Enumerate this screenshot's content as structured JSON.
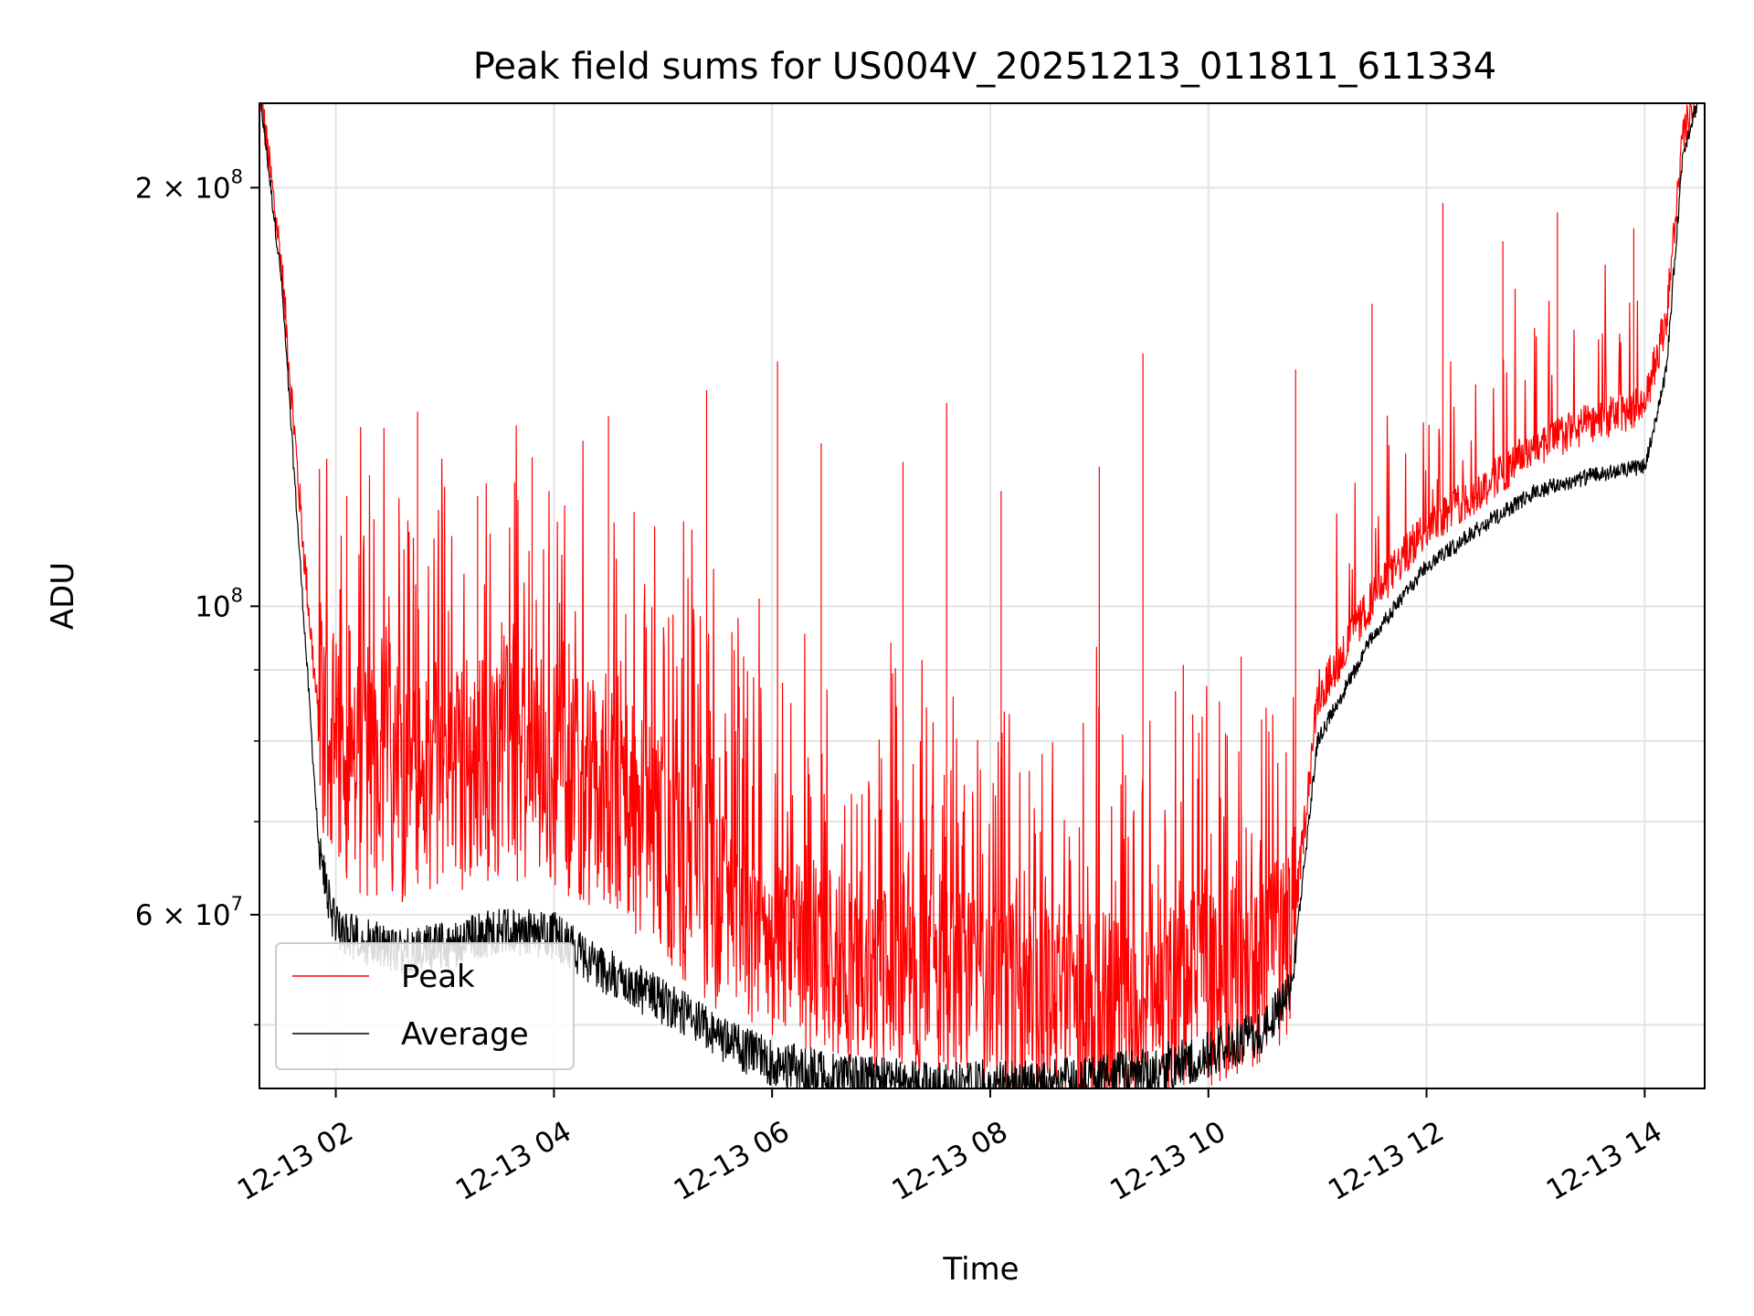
{
  "chart_data": {
    "type": "line",
    "title": "Peak field sums for US004V_20251213_011811_611334",
    "xlabel": "Time",
    "ylabel": "ADU",
    "yscale": "log",
    "xlim_hours": [
      1.3,
      14.55
    ],
    "ylim": [
      45000000,
      230000000
    ],
    "grid": true,
    "legend_position": "lower-left",
    "x_ticks": [
      {
        "value": 2,
        "label": "12-13 02"
      },
      {
        "value": 4,
        "label": "12-13 04"
      },
      {
        "value": 6,
        "label": "12-13 06"
      },
      {
        "value": 8,
        "label": "12-13 08"
      },
      {
        "value": 10,
        "label": "12-13 10"
      },
      {
        "value": 12,
        "label": "12-13 12"
      },
      {
        "value": 14,
        "label": "12-13 14"
      }
    ],
    "y_ticks": [
      {
        "value": 200000000,
        "mantissa": "2 × 10",
        "exponent": "8"
      },
      {
        "value": 100000000,
        "mantissa": "10",
        "exponent": "8"
      },
      {
        "value": 60000000,
        "mantissa": "6 × 10",
        "exponent": "7"
      }
    ],
    "y_minor_ticks": [
      50000000,
      70000000,
      80000000,
      90000000
    ],
    "series": [
      {
        "name": "Peak",
        "color": "#ff0000",
        "baseline_hours": [
          1.3,
          1.5,
          1.7,
          1.85,
          2.0,
          2.5,
          3.0,
          3.5,
          4.0,
          4.5,
          5.0,
          5.5,
          6.0,
          6.5,
          7.0,
          7.5,
          8.0,
          8.5,
          9.0,
          9.5,
          10.0,
          10.5,
          10.75,
          11.0,
          11.5,
          12.0,
          12.5,
          13.0,
          13.5,
          14.0,
          14.2,
          14.35,
          14.55
        ],
        "baseline_values": [
          235000000,
          175000000,
          110000000,
          80000000,
          72000000,
          70000000,
          71000000,
          73000000,
          72000000,
          68000000,
          64000000,
          58000000,
          55000000,
          53000000,
          52000000,
          51000000,
          50000000,
          49500000,
          49000000,
          49500000,
          50500000,
          52500000,
          55000000,
          85000000,
          100000000,
          113000000,
          120000000,
          129000000,
          134000000,
          138000000,
          160000000,
          215000000,
          240000000
        ],
        "spikes": [
          {
            "x": 2.1,
            "y": 120000000
          },
          {
            "x": 2.75,
            "y": 138000000
          },
          {
            "x": 3.3,
            "y": 120000000
          },
          {
            "x": 3.8,
            "y": 128000000
          },
          {
            "x": 4.5,
            "y": 137000000
          },
          {
            "x": 5.4,
            "y": 143000000
          },
          {
            "x": 6.05,
            "y": 150000000
          },
          {
            "x": 6.45,
            "y": 131000000
          },
          {
            "x": 7.2,
            "y": 127000000
          },
          {
            "x": 7.6,
            "y": 140000000
          },
          {
            "x": 8.1,
            "y": 121000000
          },
          {
            "x": 9.0,
            "y": 126000000
          },
          {
            "x": 9.4,
            "y": 152000000
          },
          {
            "x": 10.3,
            "y": 92000000
          },
          {
            "x": 10.8,
            "y": 148000000
          },
          {
            "x": 11.5,
            "y": 165000000
          },
          {
            "x": 12.15,
            "y": 195000000
          },
          {
            "x": 12.7,
            "y": 183000000
          },
          {
            "x": 13.2,
            "y": 192000000
          },
          {
            "x": 13.9,
            "y": 187000000
          }
        ]
      },
      {
        "name": "Average",
        "color": "#000000",
        "baseline_hours": [
          1.3,
          1.5,
          1.7,
          1.85,
          2.0,
          2.5,
          3.0,
          3.5,
          4.0,
          4.5,
          5.0,
          5.5,
          6.0,
          6.5,
          7.0,
          7.5,
          8.0,
          8.5,
          9.0,
          9.5,
          10.0,
          10.5,
          10.75,
          11.0,
          11.5,
          12.0,
          12.5,
          13.0,
          13.5,
          14.0,
          14.2,
          14.35,
          14.55
        ],
        "baseline_values": [
          235000000,
          172000000,
          100000000,
          66000000,
          58500000,
          56500000,
          57000000,
          58500000,
          58000000,
          54500000,
          52000000,
          49000000,
          47000000,
          46000000,
          45500000,
          45300000,
          45400000,
          45500000,
          45800000,
          46500000,
          47500000,
          49500000,
          52500000,
          80000000,
          95000000,
          107000000,
          114000000,
          121000000,
          124000000,
          126000000,
          148000000,
          212000000,
          240000000
        ]
      }
    ]
  }
}
